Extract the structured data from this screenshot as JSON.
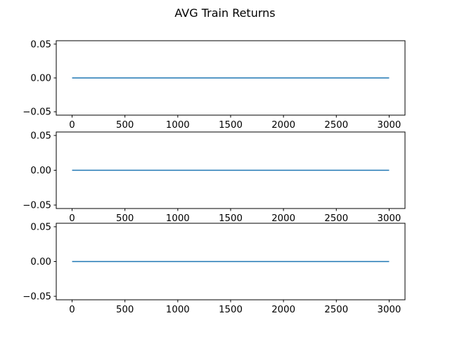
{
  "figure": {
    "title": "AVG Train Returns"
  },
  "chart_data": [
    {
      "type": "line",
      "xlim": [
        -150,
        3150
      ],
      "ylim": [
        -0.055,
        0.055
      ],
      "xticks": [
        0,
        500,
        1000,
        1500,
        2000,
        2500,
        3000
      ],
      "yticks": [
        -0.05,
        0.0,
        0.05
      ],
      "xtick_labels": [
        "0",
        "500",
        "1000",
        "1500",
        "2000",
        "2500",
        "3000"
      ],
      "ytick_labels": [
        "−0.05",
        "0.00",
        "0.05"
      ],
      "grid": false,
      "series": [
        {
          "x": [
            0,
            3000
          ],
          "y": [
            0.0,
            0.0
          ],
          "color": "#1f77b4"
        }
      ]
    },
    {
      "type": "line",
      "xlim": [
        -150,
        3150
      ],
      "ylim": [
        -0.055,
        0.055
      ],
      "xticks": [
        0,
        500,
        1000,
        1500,
        2000,
        2500,
        3000
      ],
      "yticks": [
        -0.05,
        0.0,
        0.05
      ],
      "xtick_labels": [
        "0",
        "500",
        "1000",
        "1500",
        "2000",
        "2500",
        "3000"
      ],
      "ytick_labels": [
        "−0.05",
        "0.00",
        "0.05"
      ],
      "grid": false,
      "series": [
        {
          "x": [
            0,
            3000
          ],
          "y": [
            0.0,
            0.0
          ],
          "color": "#1f77b4"
        }
      ]
    },
    {
      "type": "line",
      "xlim": [
        -150,
        3150
      ],
      "ylim": [
        -0.055,
        0.055
      ],
      "xticks": [
        0,
        500,
        1000,
        1500,
        2000,
        2500,
        3000
      ],
      "yticks": [
        -0.05,
        0.0,
        0.05
      ],
      "xtick_labels": [
        "0",
        "500",
        "1000",
        "1500",
        "2000",
        "2500",
        "3000"
      ],
      "ytick_labels": [
        "−0.05",
        "0.00",
        "0.05"
      ],
      "grid": false,
      "series": [
        {
          "x": [
            0,
            3000
          ],
          "y": [
            0.0,
            0.0
          ],
          "color": "#1f77b4"
        }
      ]
    }
  ]
}
